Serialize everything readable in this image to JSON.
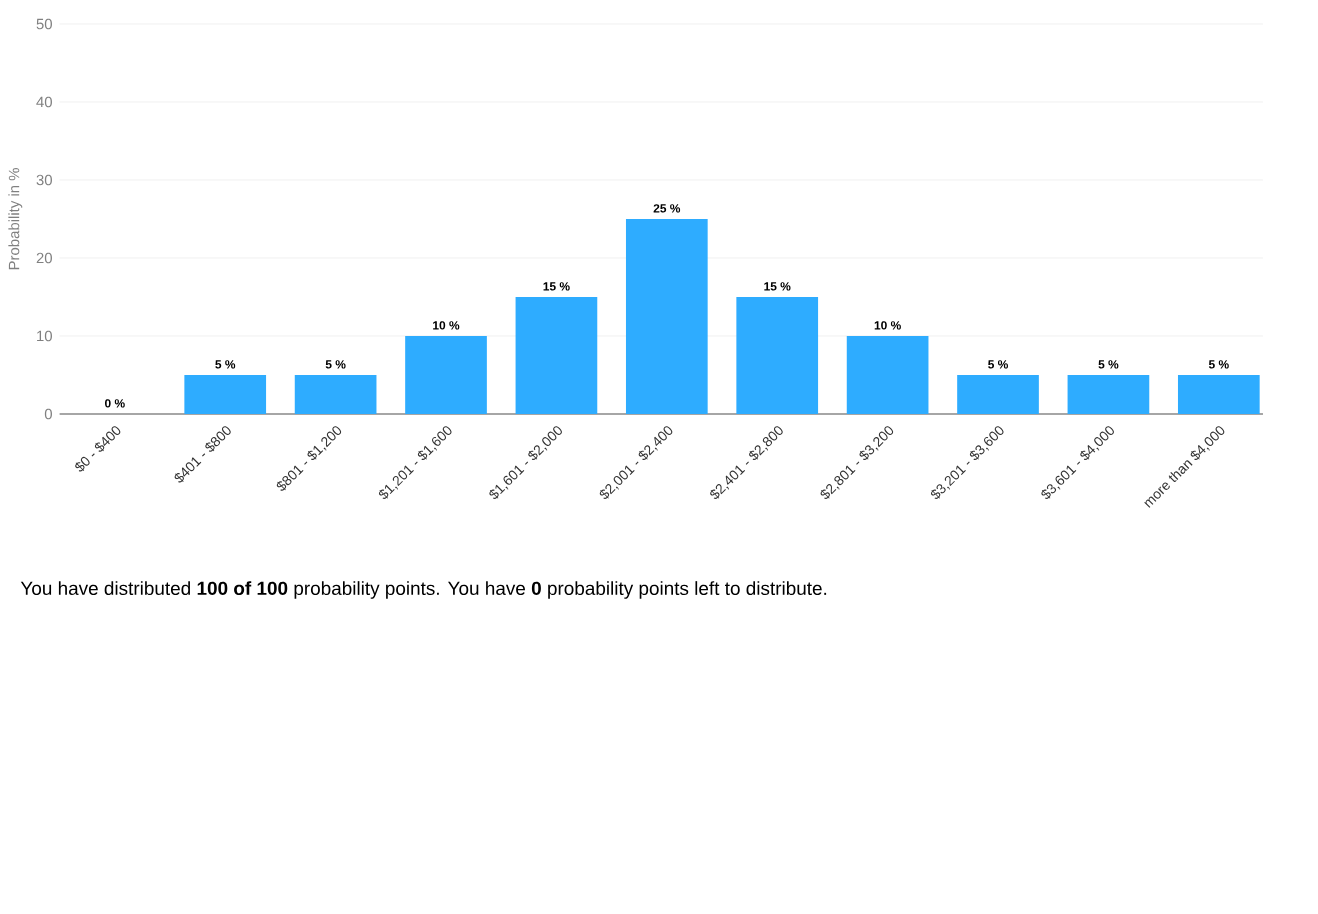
{
  "chart_data": {
    "type": "bar",
    "ylabel": "Probability in %",
    "categories": [
      "$0 - $400",
      "$401 - $800",
      "$801 - $1,200",
      "$1,201 - $1,600",
      "$1,601 - $2,000",
      "$2,001 - $2,400",
      "$2,401 - $2,800",
      "$2,801 - $3,200",
      "$3,201 - $3,600",
      "$3,601 - $4,000",
      "more than $4,000"
    ],
    "values": [
      0,
      5,
      5,
      10,
      15,
      25,
      15,
      10,
      5,
      5,
      5
    ],
    "value_labels": [
      "0 %",
      "5 %",
      "5 %",
      "10 %",
      "15 %",
      "25 %",
      "15 %",
      "10 %",
      "5 %",
      "5 %",
      "5 %"
    ],
    "color": "#2eacff",
    "ylim": [
      0,
      50
    ],
    "yticks": [
      0,
      10,
      20,
      30,
      40,
      50
    ],
    "grid": "y",
    "annotations": [
      "You have distributed **100 of 100** probability points. You have **0** probability points left to distribute."
    ]
  }
}
